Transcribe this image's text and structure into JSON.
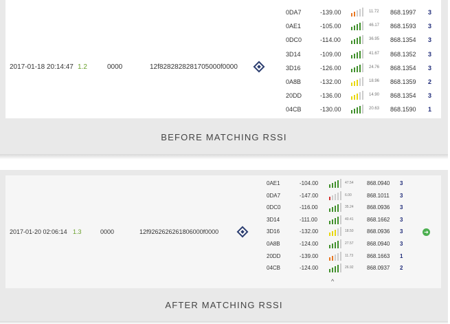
{
  "colors": {
    "green": "#3f8f2a",
    "orange": "#e87722",
    "yellow": "#e8d70c",
    "red": "#d32f2f",
    "grey": "#cccccc"
  },
  "before": {
    "timestamp": "2017-01-18 20:14:47",
    "version": "1.2",
    "code": "0000",
    "hash": "12f828282828170500 0f0000",
    "hash_text": "12f8282828281705000f0000",
    "caption": "BEFORE MATCHING RSSI",
    "gateways": [
      {
        "id": "0DA7",
        "rssi": "-139.00",
        "color": "orange",
        "level": 2,
        "snr": "11.72",
        "freq": "868.1997",
        "ch": "3"
      },
      {
        "id": "0AE1",
        "rssi": "-105.00",
        "color": "green",
        "level": 4,
        "snr": "46.17",
        "freq": "868.1593",
        "ch": "3"
      },
      {
        "id": "0DC0",
        "rssi": "-114.00",
        "color": "green",
        "level": 4,
        "snr": "36.95",
        "freq": "868.1354",
        "ch": "3"
      },
      {
        "id": "3D14",
        "rssi": "-109.00",
        "color": "green",
        "level": 4,
        "snr": "41.67",
        "freq": "868.1352",
        "ch": "3"
      },
      {
        "id": "3D16",
        "rssi": "-126.00",
        "color": "green",
        "level": 4,
        "snr": "24.76",
        "freq": "868.1354",
        "ch": "3"
      },
      {
        "id": "0A8B",
        "rssi": "-132.00",
        "color": "yellow",
        "level": 3,
        "snr": "18.96",
        "freq": "868.1359",
        "ch": "2"
      },
      {
        "id": "20DD",
        "rssi": "-136.00",
        "color": "yellow",
        "level": 3,
        "snr": "14.90",
        "freq": "868.1354",
        "ch": "3"
      },
      {
        "id": "04CB",
        "rssi": "-130.00",
        "color": "green",
        "level": 4,
        "snr": "20.63",
        "freq": "868.1590",
        "ch": "1"
      }
    ]
  },
  "after": {
    "timestamp": "2017-01-20 02:06:14",
    "version": "1.3",
    "code": "0000",
    "hash_text": "12f9262626261806000f0000",
    "caption": "AFTER MATCHING RSSI",
    "gateways": [
      {
        "id": "0AE1",
        "rssi": "-104.00",
        "color": "green",
        "level": 4,
        "snr": "47.54",
        "freq": "868.0940",
        "ch": "3"
      },
      {
        "id": "0DA7",
        "rssi": "-147.00",
        "color": "red",
        "level": 1,
        "snr": "6.00",
        "freq": "868.1011",
        "ch": "3"
      },
      {
        "id": "0DC0",
        "rssi": "-116.00",
        "color": "green",
        "level": 4,
        "snr": "35.24",
        "freq": "868.0936",
        "ch": "3"
      },
      {
        "id": "3D14",
        "rssi": "-111.00",
        "color": "green",
        "level": 4,
        "snr": "40.41",
        "freq": "868.1662",
        "ch": "3"
      },
      {
        "id": "3D16",
        "rssi": "-132.00",
        "color": "yellow",
        "level": 3,
        "snr": "18.50",
        "freq": "868.0936",
        "ch": "3"
      },
      {
        "id": "0A8B",
        "rssi": "-124.00",
        "color": "green",
        "level": 4,
        "snr": "27.57",
        "freq": "868.0940",
        "ch": "3"
      },
      {
        "id": "20DD",
        "rssi": "-139.00",
        "color": "orange",
        "level": 2,
        "snr": "11.73",
        "freq": "868.1663",
        "ch": "1"
      },
      {
        "id": "04CB",
        "rssi": "-124.00",
        "color": "green",
        "level": 4,
        "snr": "26.92",
        "freq": "868.0937",
        "ch": "2"
      }
    ],
    "expand_caret": "^",
    "go_icon_glyph": "➜"
  },
  "icons": {
    "locate": "crosshair-diamond-icon",
    "go": "arrow-circle-icon",
    "collapse": "caret-up-icon"
  }
}
